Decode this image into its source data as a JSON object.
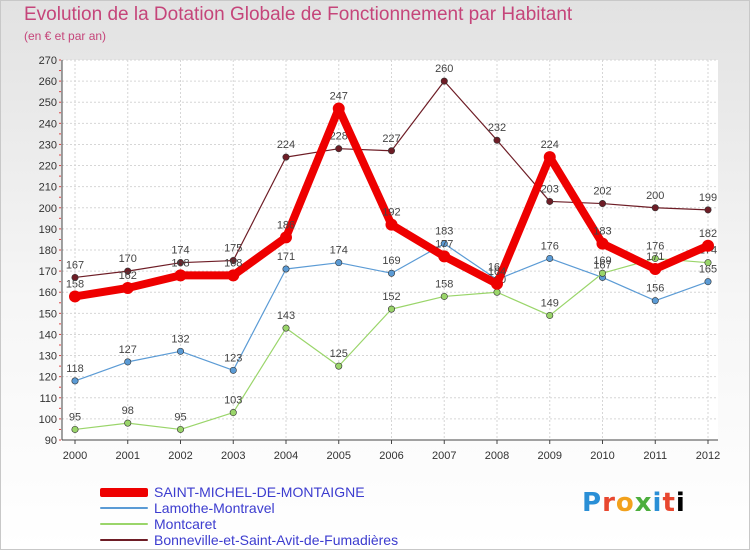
{
  "title": "Evolution de la Dotation Globale de Fonctionnement par Habitant",
  "subtitle": "(en € et par an)",
  "brand": {
    "letters": [
      "P",
      "r",
      "o",
      "x",
      "i",
      "t",
      "i"
    ]
  },
  "chart_data": {
    "type": "line",
    "title": "Evolution de la Dotation Globale de Fonctionnement par Habitant",
    "ylabel": "(en € et par an)",
    "xlabel": "",
    "categories": [
      "2000",
      "2001",
      "2002",
      "2003",
      "2004",
      "2005",
      "2006",
      "2007",
      "2008",
      "2009",
      "2010",
      "2011",
      "2012"
    ],
    "ylim": [
      90,
      270
    ],
    "yticks": [
      90,
      100,
      110,
      120,
      130,
      140,
      150,
      160,
      170,
      180,
      190,
      200,
      210,
      220,
      230,
      240,
      250,
      260,
      270
    ],
    "grid": true,
    "legend": "bottom",
    "series": [
      {
        "name": "Bonneville-et-Saint-Avit-de-Fumadières",
        "color": "#6e1d26",
        "values": [
          167,
          170,
          174,
          175,
          224,
          228,
          227,
          260,
          232,
          203,
          202,
          200,
          199
        ]
      },
      {
        "name": "Lamothe-Montravel",
        "color": "#5b9bd5",
        "values": [
          118,
          127,
          132,
          123,
          171,
          174,
          169,
          183,
          166,
          176,
          167,
          156,
          165
        ]
      },
      {
        "name": "Montcaret",
        "color": "#9ad56a",
        "values": [
          95,
          98,
          95,
          103,
          143,
          125,
          152,
          158,
          160,
          149,
          169,
          176,
          174
        ]
      },
      {
        "name": "SAINT-MICHEL-DE-MONTAIGNE",
        "color": "#ee0000",
        "values": [
          158,
          162,
          168,
          168,
          186,
          247,
          192,
          177,
          164,
          224,
          183,
          171,
          182
        ]
      }
    ],
    "legend_order": [
      "SAINT-MICHEL-DE-MONTAIGNE",
      "Lamothe-Montravel",
      "Montcaret",
      "Bonneville-et-Saint-Avit-de-Fumadières"
    ]
  }
}
